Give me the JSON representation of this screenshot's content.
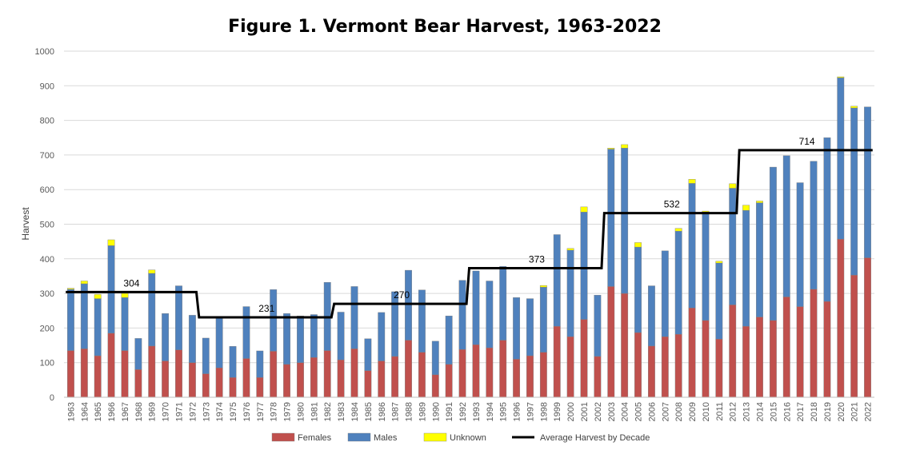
{
  "chart_data": {
    "type": "bar",
    "stacked": true,
    "title": "Figure 1. Vermont Bear Harvest, 1963-2022",
    "xlabel": "",
    "ylabel": "Harvest",
    "ylim": [
      0,
      1000
    ],
    "yticks": [
      0,
      100,
      200,
      300,
      400,
      500,
      600,
      700,
      800,
      900,
      1000
    ],
    "grid": true,
    "legend_position": "bottom",
    "categories": [
      "1963",
      "1964",
      "1965",
      "1966",
      "1967",
      "1968",
      "1969",
      "1970",
      "1971",
      "1972",
      "1973",
      "1974",
      "1975",
      "1976",
      "1977",
      "1978",
      "1979",
      "1980",
      "1981",
      "1982",
      "1983",
      "1984",
      "1985",
      "1986",
      "1987",
      "1988",
      "1989",
      "1990",
      "1991",
      "1992",
      "1993",
      "1994",
      "1995",
      "1996",
      "1997",
      "1998",
      "1999",
      "2000",
      "2001",
      "2002",
      "2003",
      "2004",
      "2005",
      "2006",
      "2007",
      "2008",
      "2009",
      "2010",
      "2011",
      "2012",
      "2013",
      "2014",
      "2015",
      "2016",
      "2017",
      "2018",
      "2019",
      "2020",
      "2021",
      "2022"
    ],
    "series": [
      {
        "name": "Females",
        "color": "#c0504d",
        "values": [
          135,
          140,
          120,
          185,
          135,
          80,
          148,
          105,
          137,
          100,
          68,
          85,
          57,
          112,
          57,
          133,
          95,
          100,
          115,
          135,
          108,
          140,
          77,
          105,
          118,
          165,
          130,
          65,
          95,
          138,
          152,
          143,
          165,
          110,
          120,
          130,
          205,
          175,
          225,
          118,
          320,
          300,
          187,
          148,
          175,
          182,
          258,
          222,
          168,
          267,
          205,
          232,
          222,
          290,
          262,
          312,
          277,
          457,
          353,
          403
        ]
      },
      {
        "name": "Males",
        "color": "#4f81bd",
        "values": [
          177,
          188,
          165,
          253,
          153,
          90,
          210,
          137,
          185,
          137,
          103,
          145,
          90,
          150,
          77,
          178,
          147,
          135,
          124,
          197,
          138,
          180,
          92,
          140,
          187,
          202,
          180,
          97,
          140,
          200,
          213,
          193,
          213,
          178,
          165,
          188,
          265,
          250,
          310,
          177,
          397,
          420,
          247,
          174,
          248,
          298,
          360,
          313,
          220,
          337,
          335,
          330,
          443,
          408,
          358,
          370,
          473,
          466,
          483,
          436
        ]
      },
      {
        "name": "Unknown",
        "color": "#ffff00",
        "values": [
          3,
          8,
          12,
          17,
          12,
          0,
          10,
          0,
          0,
          0,
          0,
          0,
          0,
          0,
          0,
          0,
          0,
          0,
          0,
          0,
          0,
          0,
          0,
          0,
          0,
          0,
          0,
          0,
          0,
          0,
          0,
          0,
          0,
          0,
          0,
          5,
          0,
          5,
          15,
          0,
          3,
          10,
          13,
          0,
          0,
          8,
          12,
          3,
          5,
          13,
          15,
          5,
          0,
          0,
          0,
          0,
          0,
          3,
          5,
          0
        ]
      }
    ],
    "average_by_decade": {
      "name": "Average Harvest by Decade",
      "color": "#000000",
      "segments": [
        {
          "from": "1963",
          "to": "1972",
          "value": 304,
          "label": "304"
        },
        {
          "from": "1973",
          "to": "1982",
          "value": 231,
          "label": "231"
        },
        {
          "from": "1983",
          "to": "1992",
          "value": 270,
          "label": "270"
        },
        {
          "from": "1993",
          "to": "2002",
          "value": 373,
          "label": "373"
        },
        {
          "from": "2003",
          "to": "2012",
          "value": 532,
          "label": "532"
        },
        {
          "from": "2013",
          "to": "2022",
          "value": 714,
          "label": "714"
        }
      ]
    },
    "legend": [
      "Females",
      "Males",
      "Unknown",
      "Average Harvest by Decade"
    ]
  }
}
